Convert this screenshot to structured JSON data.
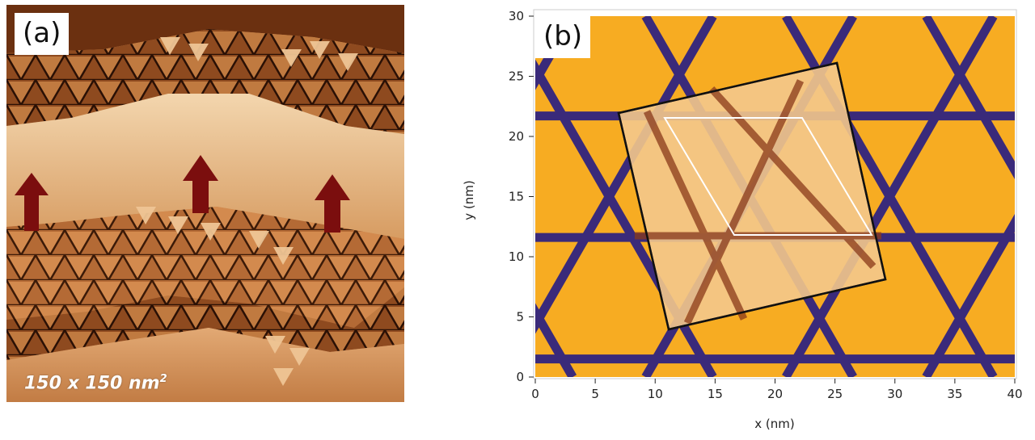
{
  "figure": {
    "panel_a": {
      "label": "(a)",
      "scale_text": "150 x 150 nm",
      "scale_exponent": "2",
      "arrow_color": "#7b0e0e"
    },
    "panel_b": {
      "label": "(b)",
      "chart_data": {
        "type": "heatmap",
        "xlabel": "x (nm)",
        "ylabel": "y (nm)",
        "xlim": [
          0,
          40
        ],
        "ylim": [
          0,
          30
        ],
        "x_ticks": [
          0,
          5,
          10,
          15,
          20,
          25,
          30,
          35,
          40
        ],
        "y_ticks": [
          0,
          5,
          10,
          15,
          20,
          25,
          30
        ],
        "grid": false,
        "colors": {
          "triangle_fill": "#f7ac22",
          "line": "#3a2a7a",
          "background": "#ffffff"
        }
      }
    }
  }
}
